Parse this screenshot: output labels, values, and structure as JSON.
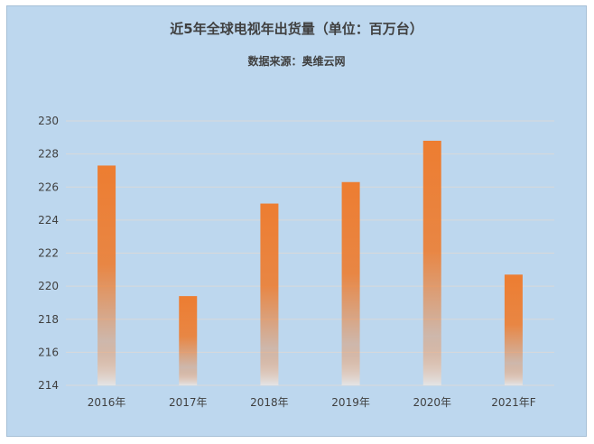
{
  "chart_data": {
    "type": "bar",
    "title": "近5年全球电视年出货量（单位：百万台）",
    "subtitle": "数据来源：奥维云网",
    "categories": [
      "2016年",
      "2017年",
      "2018年",
      "2019年",
      "2020年",
      "2021年F"
    ],
    "values": [
      227.3,
      219.4,
      225.0,
      226.3,
      228.8,
      220.7
    ],
    "xlabel": "",
    "ylabel": "",
    "ylim": [
      214,
      230
    ],
    "yticks": [
      214,
      216,
      218,
      220,
      222,
      224,
      226,
      228,
      230
    ],
    "grid": true,
    "legend": "none",
    "colors": {
      "bar_top": "#ed7d31",
      "bar_bottom": "#e7e6e6",
      "background": "#bdd7ee",
      "gridline": "#d9d9d9"
    }
  }
}
